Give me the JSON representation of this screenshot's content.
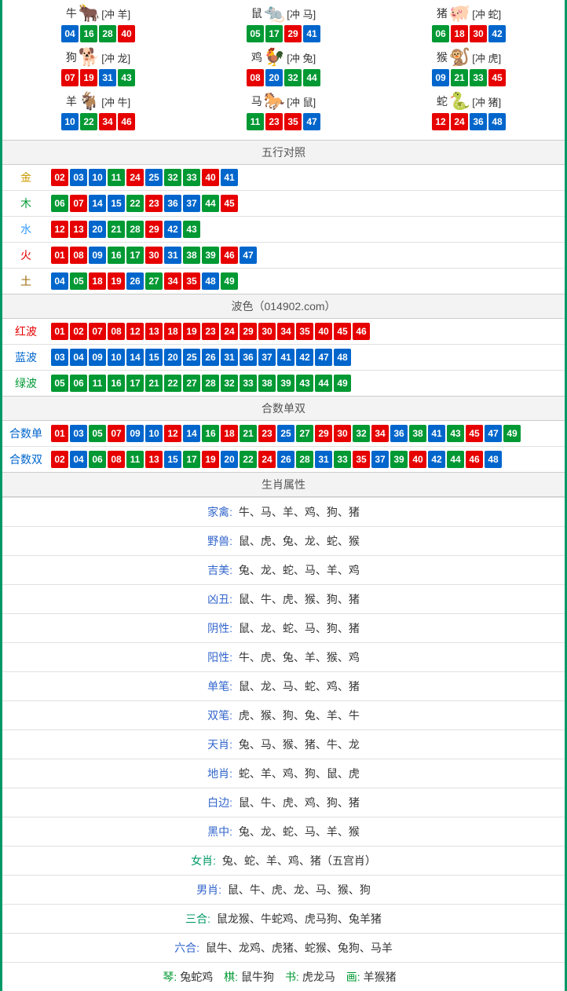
{
  "ball_colors": {
    "01": "red",
    "02": "red",
    "03": "blue",
    "04": "blue",
    "05": "green",
    "06": "green",
    "07": "red",
    "08": "red",
    "09": "blue",
    "10": "blue",
    "11": "green",
    "12": "red",
    "13": "red",
    "14": "blue",
    "15": "blue",
    "16": "green",
    "17": "green",
    "18": "red",
    "19": "red",
    "20": "blue",
    "21": "green",
    "22": "green",
    "23": "red",
    "24": "red",
    "25": "blue",
    "26": "blue",
    "27": "green",
    "28": "green",
    "29": "red",
    "30": "red",
    "31": "blue",
    "32": "green",
    "33": "green",
    "34": "red",
    "35": "red",
    "36": "blue",
    "37": "blue",
    "38": "green",
    "39": "green",
    "40": "red",
    "41": "blue",
    "42": "blue",
    "43": "green",
    "44": "green",
    "45": "red",
    "46": "red",
    "47": "blue",
    "48": "blue",
    "49": "green"
  },
  "zodiac_grid": [
    {
      "name": "牛",
      "emoji": "🐂",
      "emoji_color": "#cc3333",
      "chong": "[冲 羊]",
      "nums": [
        "04",
        "16",
        "28",
        "40"
      ]
    },
    {
      "name": "鼠",
      "emoji": "🐀",
      "emoji_color": "#6699cc",
      "chong": "[冲 马]",
      "nums": [
        "05",
        "17",
        "29",
        "41"
      ]
    },
    {
      "name": "猪",
      "emoji": "🐖",
      "emoji_color": "#ff99aa",
      "chong": "[冲 蛇]",
      "nums": [
        "06",
        "18",
        "30",
        "42"
      ]
    },
    {
      "name": "狗",
      "emoji": "🐕",
      "emoji_color": "#99ccee",
      "chong": "[冲 龙]",
      "nums": [
        "07",
        "19",
        "31",
        "43"
      ]
    },
    {
      "name": "鸡",
      "emoji": "🐓",
      "emoji_color": "#ffcc33",
      "chong": "[冲 兔]",
      "nums": [
        "08",
        "20",
        "32",
        "44"
      ]
    },
    {
      "name": "猴",
      "emoji": "🐒",
      "emoji_color": "#cc6633",
      "chong": "[冲 虎]",
      "nums": [
        "09",
        "21",
        "33",
        "45"
      ]
    },
    {
      "name": "羊",
      "emoji": "🐐",
      "emoji_color": "#ddcc88",
      "chong": "[冲 牛]",
      "nums": [
        "10",
        "22",
        "34",
        "46"
      ]
    },
    {
      "name": "马",
      "emoji": "🐎",
      "emoji_color": "#cc3333",
      "chong": "[冲 鼠]",
      "nums": [
        "11",
        "23",
        "35",
        "47"
      ]
    },
    {
      "name": "蛇",
      "emoji": "🐍",
      "emoji_color": "#339933",
      "chong": "[冲 猪]",
      "nums": [
        "12",
        "24",
        "36",
        "48"
      ]
    }
  ],
  "sections": {
    "wuxing": {
      "title": "五行对照",
      "rows": [
        {
          "label": "金",
          "class": "c-gold",
          "nums": [
            "02",
            "03",
            "10",
            "11",
            "24",
            "25",
            "32",
            "33",
            "40",
            "41"
          ]
        },
        {
          "label": "木",
          "class": "c-wood",
          "nums": [
            "06",
            "07",
            "14",
            "15",
            "22",
            "23",
            "36",
            "37",
            "44",
            "45"
          ]
        },
        {
          "label": "水",
          "class": "c-water",
          "nums": [
            "12",
            "13",
            "20",
            "21",
            "28",
            "29",
            "42",
            "43"
          ]
        },
        {
          "label": "火",
          "class": "c-fire",
          "nums": [
            "01",
            "08",
            "09",
            "16",
            "17",
            "30",
            "31",
            "38",
            "39",
            "46",
            "47"
          ]
        },
        {
          "label": "土",
          "class": "c-earth",
          "nums": [
            "04",
            "05",
            "18",
            "19",
            "26",
            "27",
            "34",
            "35",
            "48",
            "49"
          ]
        }
      ]
    },
    "bose": {
      "title": "波色（014902.com）",
      "rows": [
        {
          "label": "红波",
          "class": "c-red",
          "nums": [
            "01",
            "02",
            "07",
            "08",
            "12",
            "13",
            "18",
            "19",
            "23",
            "24",
            "29",
            "30",
            "34",
            "35",
            "40",
            "45",
            "46"
          ]
        },
        {
          "label": "蓝波",
          "class": "c-blue",
          "nums": [
            "03",
            "04",
            "09",
            "10",
            "14",
            "15",
            "20",
            "25",
            "26",
            "31",
            "36",
            "37",
            "41",
            "42",
            "47",
            "48"
          ]
        },
        {
          "label": "绿波",
          "class": "c-green",
          "nums": [
            "05",
            "06",
            "11",
            "16",
            "17",
            "21",
            "22",
            "27",
            "28",
            "32",
            "33",
            "38",
            "39",
            "43",
            "44",
            "49"
          ]
        }
      ]
    },
    "heshu": {
      "title": "合数单双",
      "rows": [
        {
          "label": "合数单",
          "class": "c-blue",
          "nums": [
            "01",
            "03",
            "05",
            "07",
            "09",
            "10",
            "12",
            "14",
            "16",
            "18",
            "21",
            "23",
            "25",
            "27",
            "29",
            "30",
            "32",
            "34",
            "36",
            "38",
            "41",
            "43",
            "45",
            "47",
            "49"
          ]
        },
        {
          "label": "合数双",
          "class": "c-blue",
          "nums": [
            "02",
            "04",
            "06",
            "08",
            "11",
            "13",
            "15",
            "17",
            "19",
            "20",
            "22",
            "24",
            "26",
            "28",
            "31",
            "33",
            "35",
            "37",
            "39",
            "40",
            "42",
            "44",
            "46",
            "48"
          ]
        }
      ]
    },
    "attrs": {
      "title": "生肖属性",
      "rows": [
        {
          "label": "家禽:",
          "lclass": "blue",
          "text": "牛、马、羊、鸡、狗、猪"
        },
        {
          "label": "野兽:",
          "lclass": "blue",
          "text": "鼠、虎、兔、龙、蛇、猴"
        },
        {
          "label": "吉美:",
          "lclass": "blue",
          "text": "兔、龙、蛇、马、羊、鸡"
        },
        {
          "label": "凶丑:",
          "lclass": "blue",
          "text": "鼠、牛、虎、猴、狗、猪"
        },
        {
          "label": "阴性:",
          "lclass": "blue",
          "text": "鼠、龙、蛇、马、狗、猪"
        },
        {
          "label": "阳性:",
          "lclass": "blue",
          "text": "牛、虎、兔、羊、猴、鸡"
        },
        {
          "label": "单笔:",
          "lclass": "blue",
          "text": "鼠、龙、马、蛇、鸡、猪"
        },
        {
          "label": "双笔:",
          "lclass": "blue",
          "text": "虎、猴、狗、兔、羊、牛"
        },
        {
          "label": "天肖:",
          "lclass": "blue",
          "text": "兔、马、猴、猪、牛、龙"
        },
        {
          "label": "地肖:",
          "lclass": "blue",
          "text": "蛇、羊、鸡、狗、鼠、虎"
        },
        {
          "label": "白边:",
          "lclass": "blue",
          "text": "鼠、牛、虎、鸡、狗、猪"
        },
        {
          "label": "黑中:",
          "lclass": "blue",
          "text": "兔、龙、蛇、马、羊、猴"
        },
        {
          "label": "女肖:",
          "lclass": "green",
          "text": "兔、蛇、羊、鸡、猪（五宫肖）"
        },
        {
          "label": "男肖:",
          "lclass": "blue",
          "text": "鼠、牛、虎、龙、马、猴、狗"
        },
        {
          "label": "三合:",
          "lclass": "green",
          "text": "鼠龙猴、牛蛇鸡、虎马狗、兔羊猪"
        },
        {
          "label": "六合:",
          "lclass": "blue",
          "text": "鼠牛、龙鸡、虎猪、蛇猴、兔狗、马羊"
        }
      ],
      "footer": {
        "parts": [
          {
            "label": "琴:",
            "lclass": "green2",
            "text": "兔蛇鸡"
          },
          {
            "label": "棋:",
            "lclass": "green2",
            "text": "鼠牛狗"
          },
          {
            "label": "书:",
            "lclass": "green2",
            "text": "虎龙马"
          },
          {
            "label": "画:",
            "lclass": "green2",
            "text": "羊猴猪"
          }
        ]
      }
    }
  }
}
